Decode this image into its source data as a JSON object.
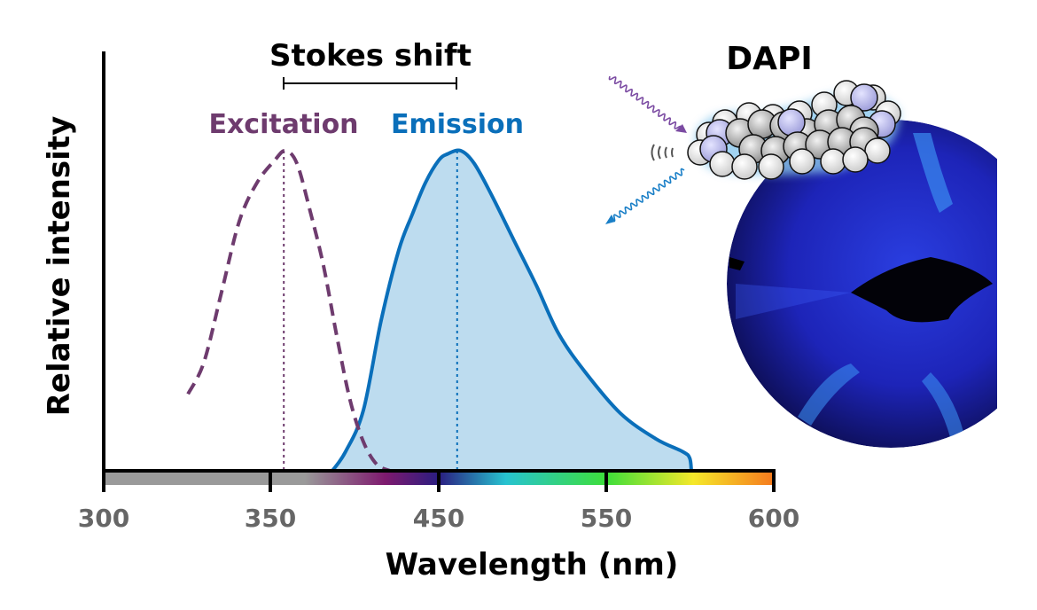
{
  "chart_data": {
    "type": "area",
    "title": "",
    "xlabel": "Wavelength (nm)",
    "ylabel": "Relative intensity",
    "x_ticks": [
      300,
      350,
      450,
      550,
      600
    ],
    "ylim": [
      0,
      1
    ],
    "grid": false,
    "series": [
      {
        "name": "Excitation",
        "color": "#6e3b6e",
        "style": "dashed",
        "peak": 358,
        "x": [
          325.3,
          330.1,
          335.4,
          340.7,
          346.0,
          352.6,
          358.9,
          365.8,
          373.7,
          381.6,
          389.5,
          397.4,
          405.3,
          413.2,
          421.1
        ],
        "y": [
          0.24,
          0.34,
          0.56,
          0.78,
          0.9,
          0.97,
          1.0,
          0.96,
          0.81,
          0.64,
          0.42,
          0.22,
          0.09,
          0.02,
          0.0
        ]
      },
      {
        "name": "Emission",
        "color": "#0a6fba",
        "fill": "#bddcef",
        "style": "solid",
        "peak": 461,
        "x": [
          386.8,
          394.7,
          405.3,
          415.8,
          426.3,
          434.2,
          442.1,
          450.0,
          455.3,
          463.2,
          471.2,
          481.7,
          494.9,
          508.2,
          521.4,
          537.2,
          554.2,
          564.8,
          572.8,
          574.9,
          575.4
        ],
        "y": [
          0.0,
          0.06,
          0.19,
          0.47,
          0.69,
          0.8,
          0.9,
          0.97,
          0.99,
          1.0,
          0.96,
          0.86,
          0.72,
          0.58,
          0.43,
          0.31,
          0.18,
          0.1,
          0.06,
          0.04,
          0.0
        ]
      }
    ],
    "annotations": {
      "stokes_shift": "Stokes shift",
      "dye": "DAPI"
    }
  }
}
